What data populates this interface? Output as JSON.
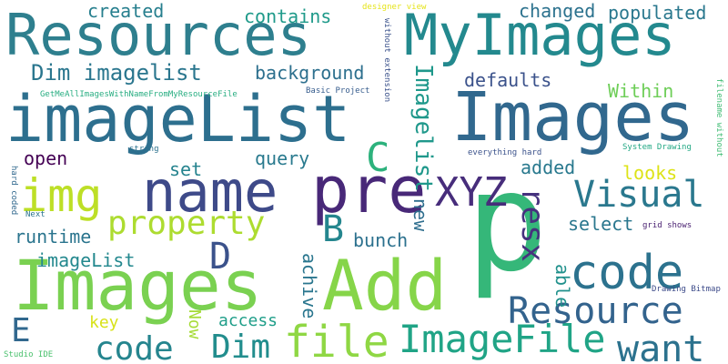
{
  "words": [
    {
      "text": "Resources",
      "color": "#2e7f8e"
    },
    {
      "text": "MyImages",
      "color": "#23898e"
    },
    {
      "text": "imageList",
      "color": "#2d6f8e"
    },
    {
      "text": "Images",
      "color": "#31688e"
    },
    {
      "text": "Images",
      "color": "#7ad151"
    },
    {
      "text": "Add",
      "color": "#86d549"
    },
    {
      "text": "p",
      "color": "#35b779"
    },
    {
      "text": "name",
      "color": "#3e4a89"
    },
    {
      "text": "pre",
      "color": "#482878"
    },
    {
      "text": "img",
      "color": "#bddf26"
    },
    {
      "text": "property",
      "color": "#addc30"
    },
    {
      "text": "code",
      "color": "#2c728e"
    },
    {
      "text": "code",
      "color": "#25858e"
    },
    {
      "text": "file",
      "color": "#8fd744"
    },
    {
      "text": "Dim",
      "color": "#228d8d"
    },
    {
      "text": "ImageFile",
      "color": "#20a486"
    },
    {
      "text": "want",
      "color": "#2c728e"
    },
    {
      "text": "Resource",
      "color": "#33638d"
    },
    {
      "text": "Visual",
      "color": "#2a788e"
    },
    {
      "text": "XYZ",
      "color": "#472d7b"
    },
    {
      "text": "resx",
      "color": "#46327e"
    },
    {
      "text": "Imagelist",
      "color": "#1f988b"
    },
    {
      "text": "C",
      "color": "#2db27d"
    },
    {
      "text": "B",
      "color": "#24868e"
    },
    {
      "text": "D",
      "color": "#3b528b"
    },
    {
      "text": "E",
      "color": "#31688e"
    },
    {
      "text": "Dim imagelist",
      "color": "#2a768e"
    },
    {
      "text": "created",
      "color": "#277f8e"
    },
    {
      "text": "contains",
      "color": "#1f9a8a"
    },
    {
      "text": "changed",
      "color": "#2c728e"
    },
    {
      "text": "populated",
      "color": "#2a788e"
    },
    {
      "text": "background",
      "color": "#2d708e"
    },
    {
      "text": "defaults",
      "color": "#3b528b"
    },
    {
      "text": "Within",
      "color": "#6ece58"
    },
    {
      "text": "open",
      "color": "#440154"
    },
    {
      "text": "set",
      "color": "#25838e"
    },
    {
      "text": "query",
      "color": "#297a8e"
    },
    {
      "text": "added",
      "color": "#29798e"
    },
    {
      "text": "looks",
      "color": "#dde318"
    },
    {
      "text": "select",
      "color": "#2a778e"
    },
    {
      "text": "runtime",
      "color": "#2b758e"
    },
    {
      "text": "bunch",
      "color": "#2c718e"
    },
    {
      "text": "new",
      "color": "#2e6e8e"
    },
    {
      "text": "able",
      "color": "#21918c"
    },
    {
      "text": "imageList",
      "color": "#23888e"
    },
    {
      "text": "achive",
      "color": "#2a768e"
    },
    {
      "text": "key",
      "color": "#d8e219"
    },
    {
      "text": "Now",
      "color": "#a5db36"
    },
    {
      "text": "access",
      "color": "#1f9e89"
    },
    {
      "text": "designer view",
      "color": "#e5e419"
    },
    {
      "text": "without extension",
      "color": "#3b528b"
    },
    {
      "text": "filename without",
      "color": "#3fbc73"
    },
    {
      "text": "GetMeAllImagesWithNameFromMyResourceFile",
      "color": "#27ad81"
    },
    {
      "text": "Basic Project",
      "color": "#365c8d"
    },
    {
      "text": "string",
      "color": "#2c728e"
    },
    {
      "text": "everything hard",
      "color": "#3b528b"
    },
    {
      "text": "System Drawing",
      "color": "#22a884"
    },
    {
      "text": "hard coded",
      "color": "#31688e"
    },
    {
      "text": "Next",
      "color": "#2b748e"
    },
    {
      "text": "grid shows",
      "color": "#481f70"
    },
    {
      "text": "Drawing Bitmap",
      "color": "#3e4c8a"
    },
    {
      "text": "Studio IDE",
      "color": "#4ac16d"
    }
  ]
}
